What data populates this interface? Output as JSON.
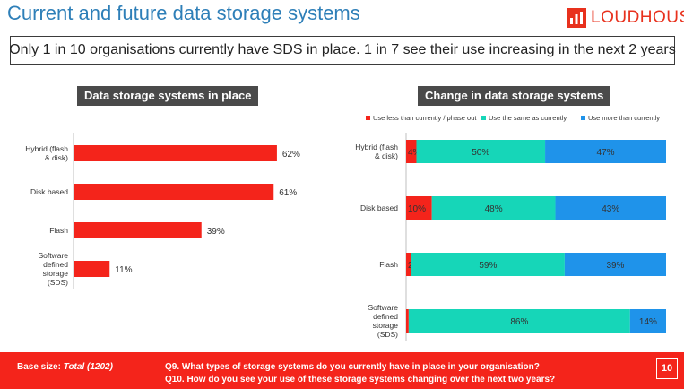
{
  "header": {
    "title": "Current and future data storage systems",
    "brand": "LOUDHOUSE",
    "headline": "Only 1 in 10 organisations currently have SDS in place.  1 in 7 see their use increasing in the next 2 years"
  },
  "colors": {
    "red": "#f4241b",
    "teal": "#16d6b8",
    "blue": "#1f93ea",
    "grey_label_bg": "#4a4a4a"
  },
  "chart_data": [
    {
      "type": "bar",
      "orientation": "horizontal",
      "title": "Data storage systems in place",
      "categories": [
        "Hybrid (flash\n& disk)",
        "Disk based",
        "Flash",
        "Software\ndefined\nstorage\n(SDS)"
      ],
      "values": [
        62,
        61,
        39,
        11
      ],
      "value_labels": [
        "62%",
        "61%",
        "39%",
        "11%"
      ],
      "xlim": [
        0,
        100
      ],
      "unit": "%"
    },
    {
      "type": "bar",
      "orientation": "horizontal",
      "stacked": true,
      "title": "Change in data storage systems",
      "categories": [
        "Hybrid (flash\n& disk)",
        "Disk based",
        "Flash",
        "Software\ndefined\nstorage\n(SDS)"
      ],
      "series": [
        {
          "name": "Use less than currently / phase out",
          "values": [
            4,
            10,
            2,
            1
          ],
          "labels": [
            "4%",
            "10%",
            "2%",
            "1%"
          ],
          "color": "#f4241b"
        },
        {
          "name": "Use the same as currently",
          "values": [
            50,
            48,
            59,
            86
          ],
          "labels": [
            "50%",
            "48%",
            "59%",
            "86%"
          ],
          "color": "#16d6b8"
        },
        {
          "name": "Use more than currently",
          "values": [
            47,
            43,
            39,
            14
          ],
          "labels": [
            "47%",
            "43%",
            "39%",
            "14%"
          ],
          "color": "#1f93ea"
        }
      ],
      "legend": "top",
      "unit": "%"
    }
  ],
  "footer": {
    "base_label": "Base size:",
    "base_value": "Total (1202)",
    "q9": "Q9. What types of storage systems do you currently have in place in your organisation?",
    "q10": "Q10. How do you see your use of these storage systems changing over the next two years?",
    "page_number": "10"
  }
}
